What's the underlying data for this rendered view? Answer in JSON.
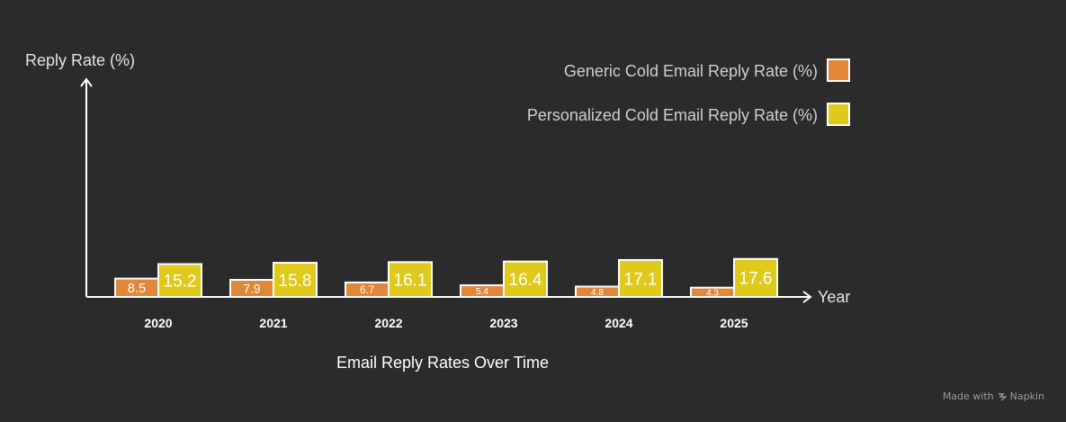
{
  "chart_data": {
    "type": "bar",
    "title": "Email Reply Rates Over Time",
    "xlabel": "Year",
    "ylabel": "Reply Rate (%)",
    "categories": [
      "2020",
      "2021",
      "2022",
      "2023",
      "2024",
      "2025"
    ],
    "series": [
      {
        "name": "Generic Cold Email Reply Rate (%)",
        "color": "#e0873a",
        "values": [
          8.5,
          7.9,
          6.7,
          5.4,
          4.8,
          4.3
        ]
      },
      {
        "name": "Personalized Cold Email Reply Rate (%)",
        "color": "#dfc91b",
        "values": [
          15.2,
          15.8,
          16.1,
          16.4,
          17.1,
          17.6
        ]
      }
    ],
    "legend_position": "top-right",
    "grid": false
  },
  "footer": {
    "made_with": "Made with",
    "brand": "Napkin"
  }
}
